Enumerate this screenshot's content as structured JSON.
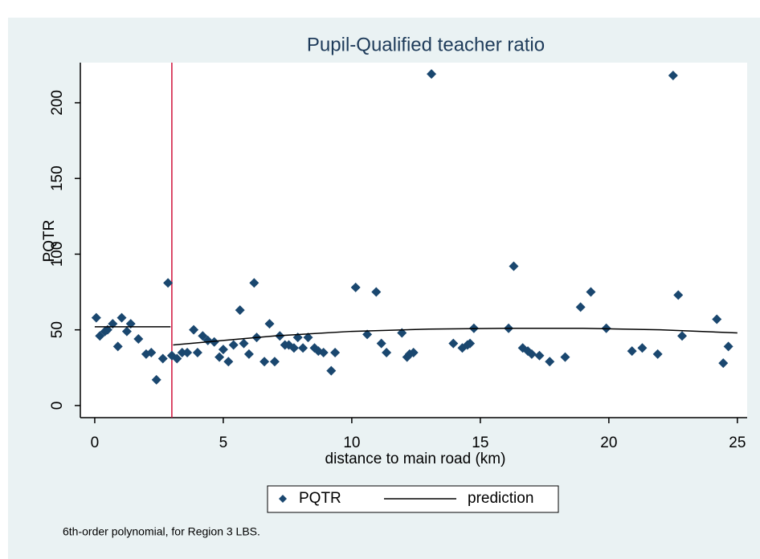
{
  "chart_data": {
    "type": "scatter",
    "title": "Pupil-Qualified teacher ratio",
    "xlabel": "distance to main road (km)",
    "ylabel": "PQTR",
    "note": "6th-order polynomial, for Region 3 LBS.",
    "xlim": [
      -0.56,
      25.38
    ],
    "ylim": [
      -8,
      226.5
    ],
    "xticks": [
      0,
      5,
      10,
      15,
      20,
      25
    ],
    "yticks": [
      0,
      50,
      100,
      150,
      200
    ],
    "grid": false,
    "xline": 3,
    "xline_color": "#d0103a",
    "series": [
      {
        "name": "PQTR",
        "type": "scatter",
        "color": "#1a476f",
        "x": [
          0.06,
          0.2,
          0.4,
          0.5,
          0.7,
          0.9,
          1.05,
          1.25,
          1.4,
          1.7,
          2.0,
          2.2,
          2.4,
          2.65,
          2.85,
          3.0,
          3.2,
          3.4,
          3.6,
          3.85,
          4.0,
          4.2,
          4.4,
          4.65,
          4.85,
          5.0,
          5.2,
          5.4,
          5.65,
          5.8,
          6.0,
          6.2,
          6.3,
          6.6,
          6.8,
          7.0,
          7.2,
          7.4,
          7.55,
          7.75,
          7.9,
          8.1,
          8.3,
          8.55,
          8.7,
          8.9,
          9.2,
          9.35,
          10.15,
          10.6,
          10.95,
          11.15,
          11.35,
          11.95,
          12.15,
          12.25,
          12.4,
          13.1,
          13.95,
          14.3,
          14.5,
          14.6,
          14.75,
          16.1,
          16.3,
          16.65,
          16.85,
          17.0,
          17.3,
          17.7,
          18.3,
          18.9,
          19.3,
          19.9,
          20.9,
          21.3,
          21.9,
          22.5,
          22.7,
          22.85,
          24.2,
          24.45,
          24.65
        ],
        "values": [
          58,
          46,
          49,
          50,
          54,
          39,
          58,
          49,
          54,
          44,
          34,
          35,
          17,
          31,
          81,
          33,
          31,
          35,
          35,
          50,
          35,
          46,
          43,
          42,
          32,
          37,
          29,
          40,
          63,
          41,
          34,
          81,
          45,
          29,
          54,
          29,
          46,
          40,
          40,
          38,
          45,
          38,
          45,
          38,
          36,
          35,
          23,
          35,
          78,
          47,
          75,
          41,
          35,
          48,
          32,
          34,
          35,
          219,
          41,
          38,
          40,
          41,
          51,
          51,
          92,
          38,
          36,
          34,
          33,
          29,
          32,
          65,
          75,
          51,
          36,
          38,
          34,
          218,
          73,
          46,
          57,
          28,
          39
        ]
      },
      {
        "name": "prediction",
        "type": "line",
        "color": "#000000",
        "x": [
          0,
          1.5,
          2.95,
          3,
          3.05,
          5,
          7,
          10,
          13,
          16,
          19,
          22,
          25
        ],
        "values": [
          52,
          52,
          52,
          null,
          40,
          43,
          46,
          49,
          50.5,
          51,
          51,
          50,
          48
        ]
      }
    ]
  }
}
